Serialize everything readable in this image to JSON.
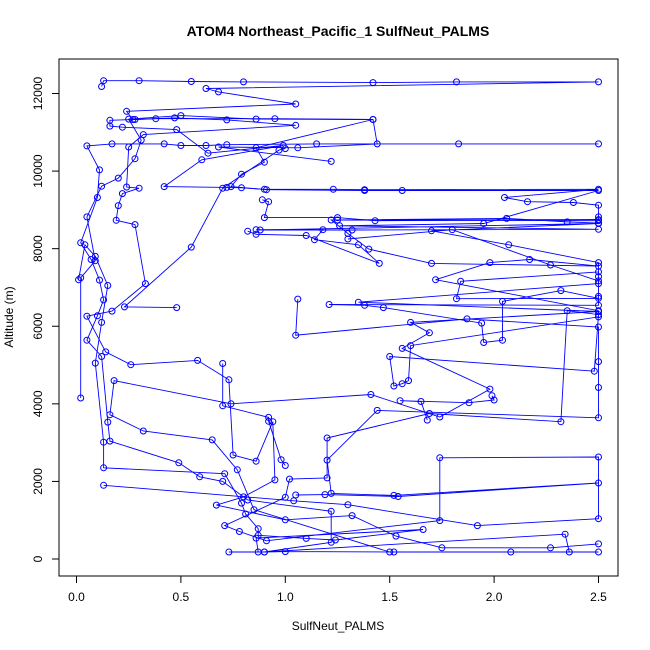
{
  "chart_data": {
    "type": "line",
    "title": "ATOM4 Northeast_Pacific_1 SulfNeut_PALMS",
    "xlabel": "SulfNeut_PALMS",
    "ylabel": "Altitude (m)",
    "xlim": [
      0.0,
      2.5
    ],
    "ylim": [
      0,
      12000
    ],
    "xticks": [
      0.0,
      0.5,
      1.0,
      1.5,
      2.0,
      2.5
    ],
    "xtick_labels": [
      "0.0",
      "0.5",
      "1.0",
      "1.5",
      "2.0",
      "2.5"
    ],
    "yticks": [
      0,
      2000,
      4000,
      6000,
      8000,
      10000,
      12000
    ],
    "ytick_labels": [
      "0",
      "2000",
      "4000",
      "6000",
      "8000",
      "10000",
      "12000"
    ],
    "grid": false,
    "legend": "none",
    "marker": "open-circle",
    "color": "#0000FF",
    "series": [
      {
        "points": [
          [
            0.73,
            180
          ],
          [
            0.9,
            180
          ],
          [
            1.0,
            190
          ],
          [
            1.52,
            180
          ],
          [
            2.08,
            180
          ],
          [
            2.5,
            180
          ],
          [
            2.36,
            180
          ],
          [
            2.34,
            640
          ],
          [
            0.9,
            180
          ],
          [
            1.22,
            430
          ],
          [
            1.22,
            1230
          ],
          [
            0.82,
            1520
          ],
          [
            0.7,
            2000
          ],
          [
            0.59,
            2120
          ],
          [
            0.49,
            2480
          ],
          [
            0.16,
            3040
          ],
          [
            0.15,
            3530
          ],
          [
            0.12,
            5220
          ],
          [
            0.05,
            5640
          ],
          [
            0.1,
            6270
          ],
          [
            0.13,
            6680
          ],
          [
            0.11,
            7190
          ],
          [
            0.07,
            7720
          ],
          [
            0.02,
            8150
          ],
          [
            0.1,
            9320
          ],
          [
            0.11,
            10030
          ],
          [
            0.05,
            10650
          ],
          [
            0.17,
            10700
          ],
          [
            0.42,
            10700
          ],
          [
            0.5,
            10660
          ],
          [
            0.62,
            10660
          ],
          [
            0.72,
            10680
          ],
          [
            1.15,
            10700
          ],
          [
            1.83,
            10700
          ],
          [
            2.5,
            10700
          ]
        ]
      },
      {
        "points": [
          [
            1.22,
            10250
          ],
          [
            0.68,
            10620
          ],
          [
            1.06,
            10600
          ],
          [
            1.44,
            10700
          ],
          [
            1.42,
            11330
          ],
          [
            0.95,
            11350
          ],
          [
            0.38,
            11350
          ],
          [
            0.28,
            11330
          ],
          [
            0.16,
            11310
          ],
          [
            0.16,
            11160
          ],
          [
            0.22,
            11130
          ],
          [
            0.48,
            11070
          ],
          [
            0.63,
            10460
          ],
          [
            0.99,
            10660
          ],
          [
            0.6,
            10290
          ],
          [
            0.42,
            9600
          ],
          [
            0.72,
            9580
          ],
          [
            0.79,
            9570
          ],
          [
            0.9,
            9530
          ],
          [
            1.23,
            9530
          ],
          [
            1.38,
            9520
          ],
          [
            2.5,
            9530
          ],
          [
            2.05,
            9320
          ],
          [
            2.16,
            9210
          ],
          [
            2.38,
            9190
          ],
          [
            2.5,
            9120
          ],
          [
            2.5,
            8820
          ],
          [
            2.5,
            8720
          ],
          [
            1.25,
            8740
          ],
          [
            2.06,
            8780
          ],
          [
            2.35,
            8690
          ],
          [
            2.5,
            8660
          ]
        ]
      },
      {
        "points": [
          [
            0.12,
            12180
          ],
          [
            0.13,
            12330
          ],
          [
            0.3,
            12330
          ],
          [
            0.55,
            12310
          ],
          [
            0.8,
            12300
          ],
          [
            1.42,
            12280
          ],
          [
            1.82,
            12300
          ],
          [
            2.5,
            12300
          ],
          [
            0.62,
            12130
          ],
          [
            0.68,
            12040
          ],
          [
            1.05,
            11730
          ],
          [
            0.24,
            11540
          ],
          [
            0.27,
            11330
          ],
          [
            0.47,
            11370
          ],
          [
            0.72,
            11320
          ],
          [
            1.05,
            11180
          ],
          [
            0.32,
            10940
          ],
          [
            0.25,
            10620
          ],
          [
            0.24,
            9590
          ],
          [
            0.3,
            9560
          ],
          [
            0.22,
            9420
          ],
          [
            0.2,
            9110
          ],
          [
            0.19,
            8730
          ],
          [
            0.28,
            8620
          ],
          [
            0.33,
            7100
          ],
          [
            0.17,
            6390
          ],
          [
            0.05,
            6260
          ],
          [
            0.14,
            5340
          ],
          [
            0.26,
            5010
          ],
          [
            0.58,
            5120
          ],
          [
            0.73,
            4620
          ],
          [
            0.75,
            2680
          ],
          [
            0.86,
            2520
          ],
          [
            0.94,
            3540
          ],
          [
            0.95,
            2040
          ],
          [
            0.8,
            1600
          ],
          [
            0.67,
            1390
          ],
          [
            1.0,
            1010
          ],
          [
            1.32,
            1120
          ],
          [
            1.53,
            590
          ],
          [
            1.75,
            290
          ],
          [
            2.27,
            290
          ],
          [
            2.5,
            390
          ]
        ]
      },
      {
        "points": [
          [
            0.02,
            4150
          ],
          [
            0.02,
            7250
          ],
          [
            0.09,
            7690
          ],
          [
            0.05,
            8820
          ],
          [
            0.12,
            9610
          ],
          [
            0.2,
            9820
          ],
          [
            0.28,
            10320
          ],
          [
            0.31,
            10800
          ],
          [
            0.25,
            11340
          ],
          [
            0.5,
            11430
          ],
          [
            0.86,
            11340
          ],
          [
            1.42,
            11330
          ],
          [
            0.86,
            10600
          ],
          [
            0.9,
            10230
          ],
          [
            0.79,
            9920
          ],
          [
            0.74,
            9600
          ],
          [
            0.91,
            9520
          ],
          [
            1.38,
            9500
          ],
          [
            1.56,
            9500
          ],
          [
            2.5,
            9500
          ],
          [
            1.95,
            8650
          ],
          [
            1.26,
            8590
          ],
          [
            2.5,
            8500
          ],
          [
            1.32,
            8480
          ],
          [
            0.88,
            8480
          ],
          [
            2.5,
            8650
          ],
          [
            1.7,
            8460
          ],
          [
            2.07,
            8100
          ],
          [
            2.5,
            7640
          ],
          [
            2.5,
            7280
          ],
          [
            2.5,
            7100
          ],
          [
            1.35,
            6620
          ],
          [
            2.5,
            6380
          ],
          [
            1.6,
            6100
          ],
          [
            1.69,
            5830
          ],
          [
            1.56,
            5430
          ],
          [
            1.98,
            4380
          ],
          [
            1.74,
            3660
          ],
          [
            1.41,
            4240
          ],
          [
            0.74,
            4000
          ],
          [
            0.18,
            4600
          ],
          [
            0.16,
            3720
          ],
          [
            0.32,
            3300
          ],
          [
            0.65,
            3070
          ],
          [
            0.77,
            2300
          ],
          [
            0.85,
            1270
          ],
          [
            1.5,
            180
          ]
        ]
      },
      {
        "points": [
          [
            0.13,
            1900
          ],
          [
            1.04,
            1500
          ],
          [
            1.3,
            1400
          ],
          [
            1.92,
            860
          ],
          [
            2.5,
            1040
          ],
          [
            2.5,
            2630
          ],
          [
            1.74,
            2610
          ],
          [
            1.74,
            990
          ],
          [
            0.91,
            470
          ],
          [
            0.78,
            710
          ],
          [
            0.71,
            860
          ],
          [
            1.0,
            1590
          ],
          [
            1.02,
            2060
          ],
          [
            1.2,
            2090
          ],
          [
            1.2,
            3120
          ],
          [
            1.69,
            3750
          ],
          [
            2.32,
            3540
          ],
          [
            2.35,
            6400
          ],
          [
            2.5,
            6300
          ],
          [
            2.48,
            4840
          ],
          [
            1.5,
            5220
          ],
          [
            1.52,
            4460
          ],
          [
            1.56,
            4520
          ],
          [
            1.59,
            4600
          ],
          [
            1.6,
            5500
          ],
          [
            2.5,
            6240
          ],
          [
            2.5,
            6400
          ],
          [
            1.72,
            7200
          ],
          [
            1.98,
            7640
          ],
          [
            2.17,
            7720
          ],
          [
            2.5,
            7550
          ],
          [
            1.7,
            7620
          ],
          [
            1.4,
            7990
          ],
          [
            1.3,
            8390
          ],
          [
            1.22,
            8740
          ],
          [
            2.5,
            8750
          ],
          [
            1.43,
            8720
          ],
          [
            1.25,
            8800
          ],
          [
            0.9,
            8800
          ],
          [
            0.92,
            9210
          ],
          [
            0.89,
            9260
          ]
        ]
      },
      {
        "points": [
          [
            0.01,
            7200
          ],
          [
            0.04,
            8100
          ],
          [
            0.09,
            7800
          ],
          [
            0.15,
            7050
          ],
          [
            0.12,
            6100
          ],
          [
            0.09,
            5050
          ],
          [
            0.13,
            3010
          ],
          [
            0.13,
            2350
          ],
          [
            0.71,
            2200
          ],
          [
            0.79,
            1440
          ],
          [
            0.81,
            1160
          ],
          [
            0.87,
            780
          ],
          [
            0.87,
            610
          ],
          [
            1.1,
            530
          ],
          [
            1.24,
            490
          ],
          [
            1.66,
            760
          ],
          [
            0.86,
            540
          ],
          [
            0.87,
            180
          ]
        ]
      },
      {
        "points": [
          [
            1.06,
            6700
          ],
          [
            1.05,
            5770
          ],
          [
            1.87,
            6190
          ],
          [
            2.5,
            5980
          ],
          [
            2.5,
            5090
          ],
          [
            2.5,
            4420
          ],
          [
            2.5,
            3640
          ],
          [
            1.44,
            3830
          ],
          [
            1.2,
            2550
          ],
          [
            1.22,
            1690
          ],
          [
            1.52,
            1640
          ],
          [
            2.5,
            1960
          ],
          [
            1.54,
            1610
          ],
          [
            1.19,
            1660
          ],
          [
            1.05,
            1650
          ]
        ]
      },
      {
        "points": [
          [
            2.5,
            7400
          ],
          [
            1.84,
            7160
          ],
          [
            1.82,
            6710
          ],
          [
            2.5,
            6720
          ],
          [
            2.32,
            6920
          ],
          [
            2.04,
            6640
          ],
          [
            2.04,
            5640
          ],
          [
            1.95,
            5580
          ],
          [
            1.94,
            6080
          ],
          [
            1.47,
            6480
          ],
          [
            1.38,
            6540
          ],
          [
            1.21,
            6560
          ],
          [
            2.5,
            6540
          ],
          [
            2.5,
            6770
          ],
          [
            2.5,
            7170
          ],
          [
            2.27,
            7580
          ],
          [
            1.8,
            8490
          ],
          [
            1.3,
            8250
          ]
        ]
      },
      {
        "points": [
          [
            0.82,
            8450
          ],
          [
            0.86,
            8370
          ],
          [
            1.1,
            8340
          ],
          [
            1.45,
            7620
          ],
          [
            1.35,
            8100
          ],
          [
            1.14,
            8230
          ],
          [
            1.18,
            8490
          ],
          [
            0.86,
            8490
          ]
        ]
      },
      {
        "points": [
          [
            0.7,
            5040
          ],
          [
            0.7,
            3950
          ],
          [
            0.92,
            3650
          ],
          [
            0.92,
            3550
          ],
          [
            0.98,
            2560
          ],
          [
            1.0,
            2410
          ]
        ]
      },
      {
        "points": [
          [
            1.99,
            4210
          ],
          [
            2.0,
            4100
          ],
          [
            1.88,
            4030
          ],
          [
            1.55,
            4080
          ],
          [
            1.65,
            4060
          ],
          [
            1.68,
            3580
          ]
        ]
      },
      {
        "points": [
          [
            0.48,
            6480
          ],
          [
            0.23,
            6500
          ],
          [
            0.55,
            8040
          ],
          [
            0.7,
            9560
          ],
          [
            0.97,
            10540
          ],
          [
            1.0,
            10580
          ]
        ]
      }
    ]
  }
}
